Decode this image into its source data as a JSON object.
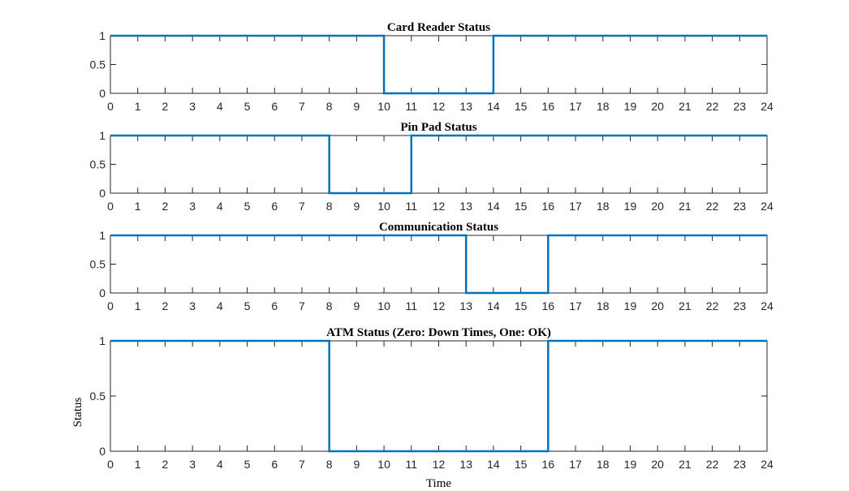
{
  "chart_data": [
    {
      "type": "line",
      "title": "Card Reader Status",
      "xlabel": "",
      "ylabel": "",
      "xlim": [
        0,
        24
      ],
      "ylim": [
        0,
        1
      ],
      "xticks": [
        0,
        1,
        2,
        3,
        4,
        5,
        6,
        7,
        8,
        9,
        10,
        11,
        12,
        13,
        14,
        15,
        16,
        17,
        18,
        19,
        20,
        21,
        22,
        23,
        24
      ],
      "yticks": [
        0,
        0.5,
        1
      ],
      "grid": false,
      "series": [
        {
          "x": [
            0,
            10,
            10,
            14,
            14,
            24
          ],
          "y": [
            1,
            1,
            0,
            0,
            1,
            1
          ],
          "color": "#0072BD"
        }
      ]
    },
    {
      "type": "line",
      "title": "Pin Pad Status",
      "xlabel": "",
      "ylabel": "",
      "xlim": [
        0,
        24
      ],
      "ylim": [
        0,
        1
      ],
      "xticks": [
        0,
        1,
        2,
        3,
        4,
        5,
        6,
        7,
        8,
        9,
        10,
        11,
        12,
        13,
        14,
        15,
        16,
        17,
        18,
        19,
        20,
        21,
        22,
        23,
        24
      ],
      "yticks": [
        0,
        0.5,
        1
      ],
      "grid": false,
      "series": [
        {
          "x": [
            0,
            8,
            8,
            11,
            11,
            24
          ],
          "y": [
            1,
            1,
            0,
            0,
            1,
            1
          ],
          "color": "#0072BD"
        }
      ]
    },
    {
      "type": "line",
      "title": "Communication Status",
      "xlabel": "",
      "ylabel": "",
      "xlim": [
        0,
        24
      ],
      "ylim": [
        0,
        1
      ],
      "xticks": [
        0,
        1,
        2,
        3,
        4,
        5,
        6,
        7,
        8,
        9,
        10,
        11,
        12,
        13,
        14,
        15,
        16,
        17,
        18,
        19,
        20,
        21,
        22,
        23,
        24
      ],
      "yticks": [
        0,
        0.5,
        1
      ],
      "grid": false,
      "series": [
        {
          "x": [
            0,
            13,
            13,
            16,
            16,
            24
          ],
          "y": [
            1,
            1,
            0,
            0,
            1,
            1
          ],
          "color": "#0072BD"
        }
      ]
    },
    {
      "type": "line",
      "title": "ATM Status (Zero: Down Times, One: OK)",
      "xlabel": "Time",
      "ylabel": "Status",
      "xlim": [
        0,
        24
      ],
      "ylim": [
        0,
        1
      ],
      "xticks": [
        0,
        1,
        2,
        3,
        4,
        5,
        6,
        7,
        8,
        9,
        10,
        11,
        12,
        13,
        14,
        15,
        16,
        17,
        18,
        19,
        20,
        21,
        22,
        23,
        24
      ],
      "yticks": [
        0,
        0.5,
        1
      ],
      "grid": false,
      "series": [
        {
          "x": [
            0,
            8,
            8,
            16,
            16,
            24
          ],
          "y": [
            1,
            1,
            0,
            0,
            1,
            1
          ],
          "color": "#0072BD"
        }
      ]
    }
  ]
}
